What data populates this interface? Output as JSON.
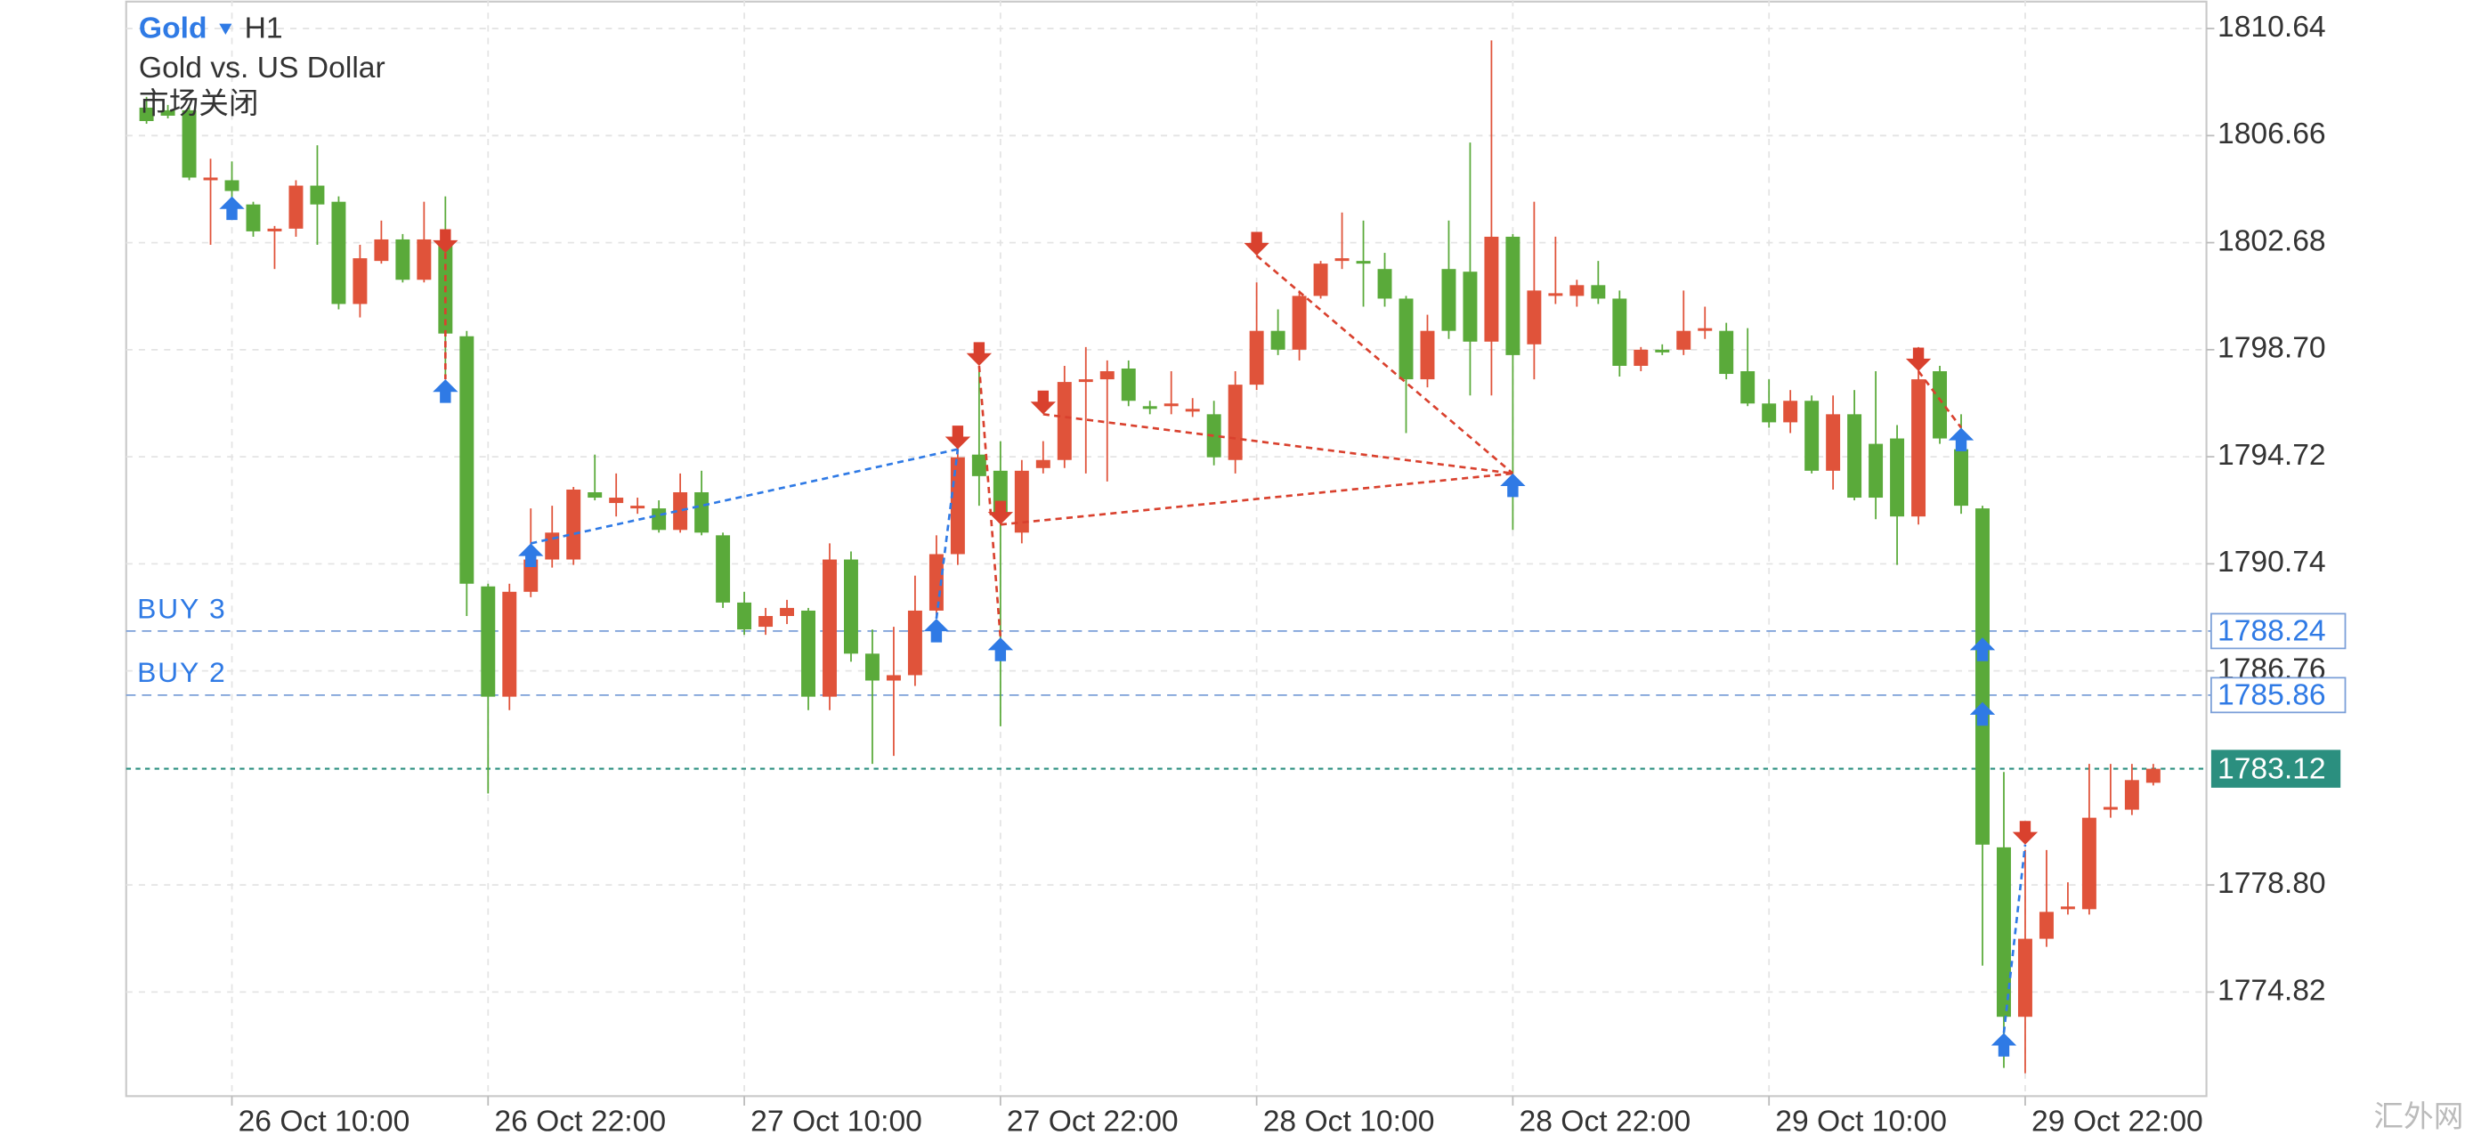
{
  "chart_data": {
    "type": "candlestick",
    "title": "Gold",
    "timeframe": "H1",
    "subtitle": "Gold vs. US Dollar",
    "status": "市场关闭",
    "watermark": "汇外网",
    "categories": [
      null,
      null,
      null,
      null,
      "26 Oct 10:00",
      null,
      null,
      null,
      null,
      null,
      null,
      null,
      null,
      null,
      null,
      null,
      "26 Oct 22:00",
      null,
      null,
      null,
      null,
      null,
      null,
      null,
      null,
      null,
      null,
      null,
      "27 Oct 10:00",
      null,
      null,
      null,
      null,
      null,
      null,
      null,
      null,
      null,
      null,
      null,
      "27 Oct 22:00",
      null,
      null,
      null,
      null,
      null,
      null,
      null,
      null,
      null,
      null,
      null,
      "28 Oct 10:00",
      null,
      null,
      null,
      null,
      null,
      null,
      null,
      null,
      null,
      null,
      null,
      "28 Oct 22:00",
      null,
      null,
      null,
      null,
      null,
      null,
      null,
      null,
      null,
      null,
      null,
      "29 Oct 10:00",
      null,
      null,
      null,
      null,
      null,
      null,
      null,
      null,
      null,
      null,
      null,
      "29 Oct 22:00",
      null,
      null,
      null,
      null,
      null,
      null
    ],
    "open": [
      1807.7,
      1807.6,
      1807.6,
      1805.0,
      1805.0,
      1804.1,
      1803.1,
      1803.2,
      1804.8,
      1804.2,
      1800.4,
      1802.0,
      1802.8,
      1801.3,
      1802.6,
      1799.2,
      1789.9,
      1785.8,
      1789.7,
      1790.9,
      1790.9,
      1793.4,
      1793.0,
      1792.8,
      1792.8,
      1792.0,
      1793.4,
      1791.8,
      1789.3,
      1788.4,
      1788.8,
      1789.0,
      1785.8,
      1790.9,
      1787.4,
      1786.4,
      1786.6,
      1789.0,
      1791.1,
      1794.8,
      1794.2,
      1791.9,
      1794.3,
      1794.6,
      1797.5,
      1797.6,
      1798.0,
      1796.6,
      1796.6,
      1796.4,
      1796.3,
      1794.6,
      1797.4,
      1799.4,
      1798.7,
      1800.7,
      1802.0,
      1802.0,
      1801.7,
      1800.6,
      1797.6,
      1801.7,
      1801.6,
      1799.0,
      1802.9,
      1798.9,
      1800.7,
      1800.7,
      1801.1,
      1800.6,
      1798.1,
      1798.7,
      1798.7,
      1799.4,
      1799.4,
      1797.9,
      1796.7,
      1796.0,
      1796.8,
      1794.2,
      1796.3,
      1795.2,
      1795.4,
      1792.5,
      1797.9,
      1795.0,
      1792.8,
      1780.2,
      1773.9,
      1776.8,
      1777.9,
      1777.9,
      1781.6,
      1781.6,
      1782.6
    ],
    "high": [
      1808.1,
      1807.8,
      1807.8,
      1805.8,
      1805.7,
      1804.2,
      1803.3,
      1805.0,
      1806.3,
      1804.4,
      1802.6,
      1803.5,
      1803.0,
      1804.2,
      1804.4,
      1799.4,
      1790.0,
      1790.0,
      1792.8,
      1792.9,
      1793.6,
      1794.8,
      1794.1,
      1793.2,
      1793.1,
      1794.1,
      1794.2,
      1791.9,
      1789.7,
      1789.1,
      1789.4,
      1789.1,
      1791.5,
      1791.2,
      1788.3,
      1788.4,
      1790.3,
      1791.8,
      1795.6,
      1797.9,
      1795.3,
      1794.6,
      1795.3,
      1798.1,
      1798.8,
      1798.3,
      1798.3,
      1796.8,
      1797.9,
      1796.9,
      1796.8,
      1797.9,
      1801.2,
      1800.2,
      1800.9,
      1802.0,
      1803.8,
      1803.5,
      1802.3,
      1800.7,
      1800.0,
      1803.5,
      1806.4,
      1810.2,
      1803.0,
      1804.2,
      1802.9,
      1801.3,
      1802.0,
      1800.9,
      1798.8,
      1798.9,
      1800.9,
      1800.3,
      1799.7,
      1799.5,
      1797.6,
      1797.2,
      1797.0,
      1797.0,
      1797.2,
      1797.9,
      1795.9,
      1798.8,
      1798.1,
      1796.3,
      1792.9,
      1783.0,
      1780.1,
      1780.1,
      1778.9,
      1783.3,
      1783.3,
      1783.3,
      1783.3
    ],
    "low": [
      1807.1,
      1807.3,
      1805.0,
      1802.6,
      1803.6,
      1802.9,
      1801.7,
      1802.9,
      1802.6,
      1800.2,
      1799.9,
      1801.9,
      1801.2,
      1801.2,
      1797.6,
      1788.8,
      1782.2,
      1785.3,
      1789.5,
      1790.6,
      1790.7,
      1793.1,
      1792.5,
      1792.6,
      1791.9,
      1791.9,
      1791.8,
      1789.1,
      1788.1,
      1788.1,
      1788.5,
      1785.3,
      1785.3,
      1787.1,
      1783.3,
      1783.6,
      1786.2,
      1788.7,
      1790.7,
      1792.9,
      1784.7,
      1791.5,
      1794.1,
      1794.3,
      1794.1,
      1793.8,
      1796.6,
      1796.3,
      1796.3,
      1796.2,
      1794.4,
      1794.1,
      1797.2,
      1798.5,
      1798.3,
      1800.6,
      1801.7,
      1800.3,
      1800.3,
      1795.6,
      1797.3,
      1799.1,
      1797.0,
      1797.0,
      1792.0,
      1797.6,
      1800.4,
      1800.3,
      1800.4,
      1797.7,
      1797.9,
      1798.5,
      1798.5,
      1799.1,
      1797.6,
      1796.6,
      1795.8,
      1795.6,
      1794.1,
      1793.5,
      1793.1,
      1792.4,
      1790.7,
      1792.2,
      1795.2,
      1792.6,
      1775.8,
      1772.0,
      1771.8,
      1776.5,
      1777.7,
      1777.7,
      1781.3,
      1781.4,
      1782.5
    ],
    "close": [
      1807.2,
      1807.4,
      1805.1,
      1805.1,
      1804.6,
      1803.1,
      1803.2,
      1804.8,
      1804.1,
      1800.4,
      1802.1,
      1802.8,
      1801.3,
      1802.8,
      1799.3,
      1790.0,
      1785.8,
      1789.7,
      1790.9,
      1791.9,
      1793.5,
      1793.2,
      1793.2,
      1792.9,
      1792.0,
      1793.4,
      1791.9,
      1789.3,
      1788.3,
      1788.8,
      1789.1,
      1785.8,
      1790.9,
      1787.4,
      1786.4,
      1786.6,
      1789.0,
      1791.1,
      1794.7,
      1794.0,
      1792.5,
      1794.2,
      1794.6,
      1797.5,
      1797.6,
      1797.9,
      1796.8,
      1796.5,
      1796.7,
      1796.5,
      1794.7,
      1797.4,
      1799.4,
      1798.7,
      1800.7,
      1801.9,
      1802.1,
      1801.9,
      1800.6,
      1797.6,
      1799.4,
      1799.4,
      1799.0,
      1802.9,
      1798.5,
      1800.9,
      1800.8,
      1801.1,
      1800.6,
      1798.1,
      1798.7,
      1798.6,
      1799.4,
      1799.5,
      1797.8,
      1796.7,
      1796.0,
      1796.8,
      1794.2,
      1796.3,
      1793.2,
      1793.2,
      1792.5,
      1797.6,
      1795.4,
      1792.9,
      1780.3,
      1773.9,
      1776.8,
      1777.8,
      1778.0,
      1781.3,
      1781.7,
      1782.7,
      1783.12
    ],
    "up_color": "#e0533a",
    "down_color": "#5aaa3a",
    "ylim": [
      1770.95,
      1811.7
    ],
    "yticks": [
      1810.64,
      1806.66,
      1802.68,
      {
        "value": 1798.7,
        "label": "1798.70"
      },
      1794.72,
      1790.74,
      1786.76,
      {
        "value": 1778.8,
        "label": "1778.80"
      },
      1774.82
    ],
    "grid": true,
    "levels": [
      {
        "label": "BUY 3",
        "value": 1788.24
      },
      {
        "label": "BUY 2",
        "value": 1785.86
      }
    ],
    "level_color": "#7b9fd8",
    "last_price": 1783.12,
    "last_price_color": "#2b8f7f",
    "markers": [
      {
        "side": "buy",
        "index": 4,
        "price": 1804.4
      },
      {
        "side": "sell",
        "index": 14,
        "price": 1802.3
      },
      {
        "side": "buy",
        "index": 14,
        "price": 1797.6
      },
      {
        "side": "buy",
        "index": 18,
        "price": 1791.5
      },
      {
        "side": "buy",
        "index": 37,
        "price": 1788.7
      },
      {
        "side": "sell",
        "index": 38,
        "price": 1795.0
      },
      {
        "side": "sell",
        "index": 39,
        "price": 1798.1
      },
      {
        "side": "sell",
        "index": 40,
        "price": 1792.2
      },
      {
        "side": "buy",
        "index": 40,
        "price": 1788.0
      },
      {
        "side": "sell",
        "index": 42,
        "price": 1796.3
      },
      {
        "side": "sell",
        "index": 52,
        "price": 1802.2
      },
      {
        "side": "buy",
        "index": 64,
        "price": 1794.1
      },
      {
        "side": "sell",
        "index": 83,
        "price": 1797.9
      },
      {
        "side": "buy",
        "index": 85,
        "price": 1795.8
      },
      {
        "side": "buy",
        "index": 86,
        "price": 1788.0
      },
      {
        "side": "buy",
        "index": 86,
        "price": 1785.6
      },
      {
        "side": "buy",
        "index": 87,
        "price": 1773.3
      },
      {
        "side": "sell",
        "index": 88,
        "price": 1780.3
      }
    ],
    "links": [
      {
        "from": 1,
        "to": 2
      },
      {
        "from": 3,
        "to": 5
      },
      {
        "from": 4,
        "to": 5
      },
      {
        "from": 6,
        "to": 8
      },
      {
        "from": 7,
        "to": 11
      },
      {
        "from": 9,
        "to": 11
      },
      {
        "from": 10,
        "to": 11
      },
      {
        "from": 12,
        "to": 13
      },
      {
        "from": 16,
        "to": 17
      }
    ],
    "buy_color": "#2f7ae5",
    "sell_color": "#d9412e"
  }
}
